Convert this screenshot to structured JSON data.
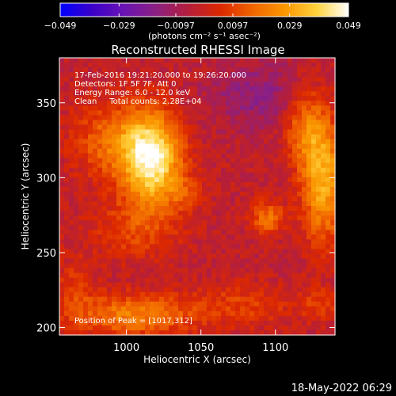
{
  "chart_data": {
    "type": "heatmap",
    "title": "Reconstructed RHESSI Image",
    "xlabel": "Heliocentric X (arcsec)",
    "ylabel": "Heliocentric Y (arcsec)",
    "xlim": [
      955,
      1140
    ],
    "ylim": [
      195,
      380
    ],
    "xticks": [
      1000,
      1050,
      1100
    ],
    "yticks": [
      200,
      250,
      300,
      350
    ],
    "colorbar": {
      "min": -0.049,
      "max": 0.049,
      "tick_values": [
        -0.049,
        -0.029,
        -0.0097,
        0.0097,
        0.029,
        0.049
      ],
      "tick_labels": [
        "−0.049",
        "−0.029",
        "−0.0097",
        "0.0097",
        "0.029",
        "0.049"
      ],
      "units": "(photons cm⁻² s⁻¹ asec⁻²)",
      "colors": [
        "#0000ff",
        "#3b00c8",
        "#6a14b4",
        "#8c2082",
        "#b41e3c",
        "#dc2800",
        "#f06400",
        "#fa9600",
        "#ffd23c",
        "#ffffff"
      ]
    },
    "annotations": [
      "17-Feb-2016 19:21:20.000 to 19:26:20.000",
      "Detectors: 1F 5F 7F, Att 0",
      "Energy Range: 6.0 - 12.0 keV",
      "Clean     Total counts: 2.28E+04"
    ],
    "peak_label": "Position of Peak = [1017,312]",
    "sources": [
      {
        "x": 1017,
        "y": 312,
        "sigma_x": 14,
        "sigma_y": 22,
        "amplitude": 0.049
      },
      {
        "x": 990,
        "y": 325,
        "sigma_x": 18,
        "sigma_y": 18,
        "amplitude": 0.02
      },
      {
        "x": 1005,
        "y": 265,
        "sigma_x": 22,
        "sigma_y": 14,
        "amplitude": 0.012
      },
      {
        "x": 1132,
        "y": 298,
        "sigma_x": 10,
        "sigma_y": 28,
        "amplitude": 0.035
      },
      {
        "x": 1120,
        "y": 335,
        "sigma_x": 10,
        "sigma_y": 18,
        "amplitude": 0.022
      },
      {
        "x": 1095,
        "y": 273,
        "sigma_x": 8,
        "sigma_y": 8,
        "amplitude": 0.022
      },
      {
        "x": 1040,
        "y": 290,
        "sigma_x": 8,
        "sigma_y": 8,
        "amplitude": 0.01
      },
      {
        "x": 1005,
        "y": 208,
        "sigma_x": 28,
        "sigma_y": 10,
        "amplitude": 0.025
      },
      {
        "x": 1080,
        "y": 215,
        "sigma_x": 25,
        "sigma_y": 10,
        "amplitude": 0.012
      },
      {
        "x": 965,
        "y": 225,
        "sigma_x": 10,
        "sigma_y": 15,
        "amplitude": 0.01
      },
      {
        "x": 1130,
        "y": 215,
        "sigma_x": 10,
        "sigma_y": 8,
        "amplitude": 0.01
      },
      {
        "x": 1090,
        "y": 355,
        "sigma_x": 25,
        "sigma_y": 15,
        "amplitude": -0.012
      }
    ]
  },
  "footer": {
    "date_stamp": "18-May-2022 06:29"
  }
}
